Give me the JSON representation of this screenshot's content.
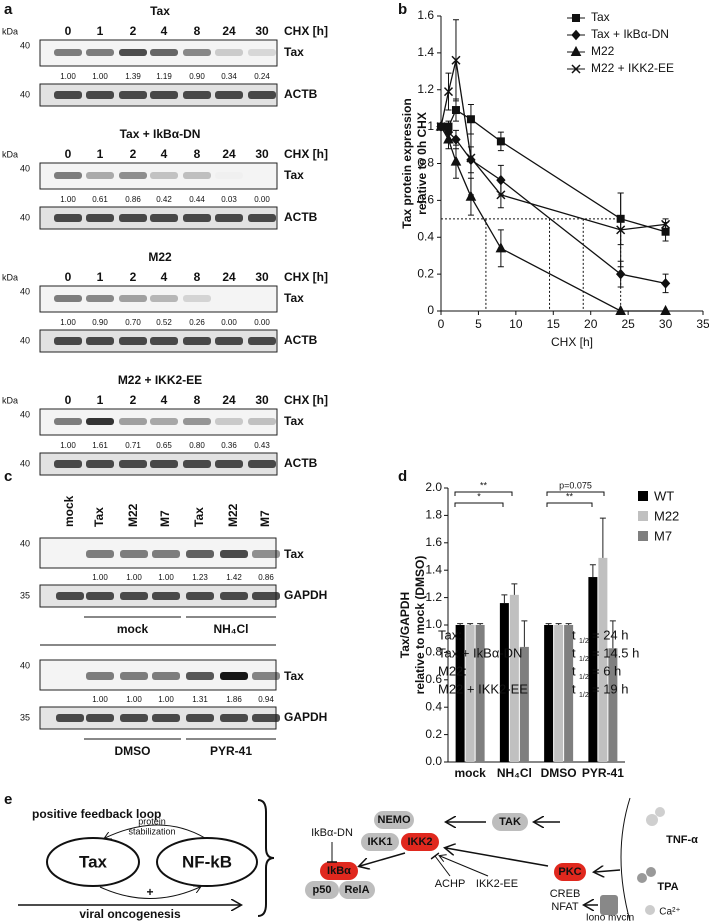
{
  "panel_labels": [
    "a",
    "b",
    "c",
    "d",
    "e"
  ],
  "panel_a": {
    "kda_label": "kDa",
    "marker": "40",
    "time_label": "CHX [h]",
    "lanes": [
      "0",
      "1",
      "2",
      "4",
      "8",
      "24",
      "30"
    ],
    "target": "Tax",
    "loading": "ACTB",
    "blots": [
      {
        "title": "Tax",
        "quant": [
          "1.00",
          "1.00",
          "1.39",
          "1.19",
          "0.90",
          "0.34",
          "0.24"
        ]
      },
      {
        "title": "Tax + IkBα-DN",
        "quant": [
          "1.00",
          "0.61",
          "0.86",
          "0.42",
          "0.44",
          "0.03",
          "0.00"
        ]
      },
      {
        "title": "M22",
        "quant": [
          "1.00",
          "0.90",
          "0.70",
          "0.52",
          "0.26",
          "0.00",
          "0.00"
        ]
      },
      {
        "title": "M22 + IKK2-EE",
        "quant": [
          "1.00",
          "1.61",
          "0.71",
          "0.65",
          "0.80",
          "0.36",
          "0.43"
        ]
      }
    ]
  },
  "chart_data": [
    {
      "type": "line",
      "xlabel": "CHX [h]",
      "ylabel": [
        "Tax protein expression",
        "relative to 0h CHX"
      ],
      "x": [
        0,
        1,
        2,
        4,
        8,
        24,
        30
      ],
      "series": [
        {
          "name": "Tax",
          "marker": "square",
          "color": "#111111",
          "values": [
            1.0,
            1.0,
            1.09,
            1.04,
            0.92,
            0.5,
            0.43
          ],
          "errors": [
            0,
            0.03,
            0.06,
            0.08,
            0.05,
            0.14,
            0.05
          ]
        },
        {
          "name": "Tax + IkBα-DN",
          "marker": "diamond",
          "color": "#111111",
          "values": [
            1.0,
            0.97,
            0.93,
            0.82,
            0.71,
            0.2,
            0.15
          ],
          "errors": [
            0,
            0.04,
            0.05,
            0.07,
            0.08,
            0.07,
            0.05
          ]
        },
        {
          "name": "M22",
          "marker": "triangle",
          "color": "#111111",
          "values": [
            1.0,
            0.93,
            0.81,
            0.62,
            0.34,
            0.0,
            0.0
          ],
          "errors": [
            0,
            0.05,
            0.09,
            0.1,
            0.1,
            0,
            0
          ]
        },
        {
          "name": "M22 + IKK2-EE",
          "marker": "cross",
          "color": "#111111",
          "values": [
            1.0,
            1.19,
            1.36,
            0.83,
            0.63,
            0.44,
            0.47
          ],
          "errors": [
            0,
            0.1,
            0.22,
            0.2,
            0.07,
            0.2,
            0.03
          ]
        }
      ],
      "xlim": [
        0,
        35
      ],
      "xticks": [
        0,
        5,
        10,
        15,
        20,
        25,
        30,
        35
      ],
      "ylim": [
        0,
        1.6
      ],
      "yticks": [
        0,
        0.2,
        0.4,
        0.6,
        0.8,
        1,
        1.2,
        1.4,
        1.6
      ],
      "reference_y": 0.5,
      "half_life_x": [
        6,
        14.5,
        19,
        24
      ],
      "half_lives": [
        {
          "label": "Tax:",
          "t": "t",
          "sub": "1/2",
          "rest": "= 24 h"
        },
        {
          "label": "Tax + IkBα-DN",
          "t": "t",
          "sub": "1/2",
          "rest": "= 14.5 h"
        },
        {
          "label": "M22:",
          "t": "t",
          "sub": "1/2",
          "rest": "= 6 h"
        },
        {
          "label": "M22 + IKK2-EE",
          "t": "t",
          "sub": "1/2",
          "rest": "= 19 h"
        }
      ]
    },
    {
      "type": "bar",
      "ylabel": [
        "Tax/GAPDH",
        "relative to mock (DMSO)"
      ],
      "categories": [
        "mock",
        "NH₄Cl",
        "DMSO",
        "PYR-41"
      ],
      "series": [
        {
          "name": "WT",
          "color": "#000000",
          "values": [
            1.0,
            1.16,
            1.0,
            1.35
          ],
          "errors": [
            0.01,
            0.06,
            0.01,
            0.09
          ]
        },
        {
          "name": "M22",
          "color": "#c0c0c0",
          "values": [
            1.0,
            1.22,
            1.0,
            1.49
          ],
          "errors": [
            0.01,
            0.08,
            0.01,
            0.29
          ]
        },
        {
          "name": "M7",
          "color": "#7f7f7f",
          "values": [
            1.0,
            0.84,
            1.0,
            0.83
          ],
          "errors": [
            0.01,
            0.19,
            0.01,
            0.2
          ]
        }
      ],
      "ylim": [
        0,
        2
      ],
      "yticks": [
        {
          "value": 0,
          "label": "0.0"
        },
        {
          "value": 0.2,
          "label": "0.2"
        },
        {
          "value": 0.4,
          "label": "0.4"
        },
        {
          "value": 0.6,
          "label": "0.6"
        },
        {
          "value": 0.8,
          "label": "0.8"
        },
        {
          "value": 1,
          "label": "1.0"
        },
        {
          "value": 1.2,
          "label": "1.2"
        },
        {
          "value": 1.4,
          "label": "1.4"
        },
        {
          "value": 1.6,
          "label": "1.6"
        },
        {
          "value": 1.8,
          "label": "1.8"
        },
        {
          "value": 2,
          "label": "2.0"
        }
      ],
      "significance": [
        "**",
        "*",
        "p=0.075",
        "**"
      ]
    }
  ],
  "panel_c": {
    "lanes": [
      "mock",
      "Tax",
      "M22",
      "M7",
      "Tax",
      "M22",
      "M7"
    ],
    "target": "Tax",
    "loading": "GAPDH",
    "marker_top": "40",
    "marker_bottom": "35",
    "blots": [
      {
        "quant": [
          "1.00",
          "1.00",
          "1.00",
          "1.23",
          "1.42",
          "0.86"
        ],
        "groups": [
          "mock",
          "NH₄Cl"
        ]
      },
      {
        "quant": [
          "1.00",
          "1.00",
          "1.00",
          "1.31",
          "1.86",
          "0.94"
        ],
        "groups": [
          "DMSO",
          "PYR-41"
        ]
      }
    ]
  },
  "panel_e": {
    "loop_title": "positive feedback loop",
    "stabilization": [
      "protein",
      "stabilization"
    ],
    "tax": "Tax",
    "nfkb": "NF-kB",
    "plus": "+",
    "oncogenesis": "viral oncogenesis",
    "nemo": "NEMO",
    "ikk1": "IKK1",
    "ikk2": "IKK2",
    "tak": "TAK",
    "tnf": "TNF-α",
    "ikba_dn": "IkBα-DN",
    "ikba": "IkBα",
    "p50": "p50",
    "rela": "RelA",
    "achp": "ACHP",
    "ikk2ee": "IKK2-EE",
    "pkc": "PKC",
    "tpa": "TPA",
    "creb": "CREB",
    "nfat": "NFAT",
    "ionomycin": "Iono mycin",
    "ca": "Ca²⁺"
  }
}
